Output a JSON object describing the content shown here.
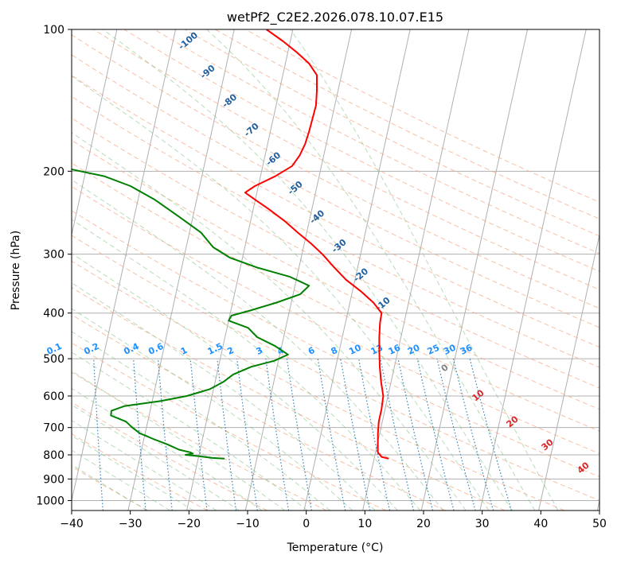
{
  "chart_data": {
    "type": "line",
    "subtype": "skew-t log-p diagram",
    "title": "wetPf2_C2E2.2026.078.10.07.E15",
    "xlabel": "Temperature (°C)",
    "ylabel": "Pressure (hPa)",
    "xlim": [
      -40,
      50
    ],
    "ylim": [
      1050,
      100
    ],
    "y_scale": "log",
    "x_ticks": [
      -40,
      -30,
      -20,
      -10,
      0,
      10,
      20,
      30,
      40,
      50
    ],
    "y_ticks": [
      1000,
      900,
      800,
      700,
      600,
      500,
      400,
      300,
      200,
      100
    ],
    "grid": true,
    "series": [
      {
        "role": "temperature",
        "color": "#ff0000",
        "points": [
          [
            815,
            12.5
          ],
          [
            808,
            11.2
          ],
          [
            790,
            10.4
          ],
          [
            760,
            10.1
          ],
          [
            720,
            9.7
          ],
          [
            680,
            9.4
          ],
          [
            640,
            9.4
          ],
          [
            600,
            9.2
          ],
          [
            560,
            8.3
          ],
          [
            520,
            7.5
          ],
          [
            480,
            6.8
          ],
          [
            450,
            6.3
          ],
          [
            420,
            5.9
          ],
          [
            400,
            5.8
          ],
          [
            380,
            4.0
          ],
          [
            360,
            1.5
          ],
          [
            340,
            -1.5
          ],
          [
            320,
            -4.0
          ],
          [
            300,
            -6.5
          ],
          [
            285,
            -8.8
          ],
          [
            270,
            -11.5
          ],
          [
            255,
            -14.2
          ],
          [
            240,
            -17.5
          ],
          [
            230,
            -20.0
          ],
          [
            222,
            -22.0
          ],
          [
            215,
            -20.6
          ],
          [
            205,
            -17.5
          ],
          [
            195,
            -15.0
          ],
          [
            185,
            -14.1
          ],
          [
            175,
            -13.6
          ],
          [
            165,
            -13.4
          ],
          [
            155,
            -13.3
          ],
          [
            145,
            -13.2
          ],
          [
            135,
            -13.6
          ],
          [
            125,
            -14.2
          ],
          [
            118,
            -16.0
          ],
          [
            112,
            -18.4
          ],
          [
            106,
            -21.2
          ],
          [
            100,
            -24.5
          ]
        ]
      },
      {
        "role": "dewpoint",
        "color": "#008000",
        "points": [
          [
            815,
            -15.5
          ],
          [
            812,
            -17.6
          ],
          [
            805,
            -20.0
          ],
          [
            800,
            -22.3
          ],
          [
            795,
            -21.1
          ],
          [
            790,
            -21.6
          ],
          [
            780,
            -23.6
          ],
          [
            760,
            -25.8
          ],
          [
            740,
            -28.4
          ],
          [
            720,
            -30.9
          ],
          [
            700,
            -32.4
          ],
          [
            680,
            -33.7
          ],
          [
            660,
            -36.5
          ],
          [
            645,
            -36.6
          ],
          [
            630,
            -34.5
          ],
          [
            615,
            -28.6
          ],
          [
            600,
            -24.3
          ],
          [
            580,
            -20.6
          ],
          [
            560,
            -18.6
          ],
          [
            540,
            -17.2
          ],
          [
            520,
            -14.4
          ],
          [
            505,
            -10.7
          ],
          [
            490,
            -8.6
          ],
          [
            470,
            -11.1
          ],
          [
            450,
            -14.5
          ],
          [
            430,
            -16.4
          ],
          [
            415,
            -20.0
          ],
          [
            405,
            -19.7
          ],
          [
            395,
            -16.7
          ],
          [
            380,
            -12.5
          ],
          [
            365,
            -8.8
          ],
          [
            350,
            -7.6
          ],
          [
            335,
            -11.2
          ],
          [
            320,
            -17.2
          ],
          [
            305,
            -22.2
          ],
          [
            290,
            -25.4
          ],
          [
            270,
            -28.0
          ],
          [
            250,
            -32.3
          ],
          [
            230,
            -37.1
          ],
          [
            215,
            -41.8
          ],
          [
            205,
            -46.6
          ],
          [
            198,
            -52.6
          ],
          [
            192,
            -60.0
          ],
          [
            187,
            -67.0
          ],
          [
            184,
            -71.3
          ],
          [
            180,
            -73.0
          ],
          [
            173,
            -72.1
          ],
          [
            165,
            -71.0
          ],
          [
            155,
            -71.0
          ],
          [
            145,
            -72.7
          ],
          [
            135,
            -74.6
          ],
          [
            125,
            -75.6
          ],
          [
            115,
            -78.7
          ],
          [
            108,
            -82.6
          ],
          [
            100,
            -88.3
          ]
        ]
      }
    ],
    "dry_adiabat_labels": [
      "-100",
      "-90",
      "-80",
      "-70",
      "-60",
      "-50",
      "-40",
      "-30",
      "-20",
      "-10"
    ],
    "mixing_ratio_labels": [
      "0.1",
      "0.2",
      "0.4",
      "0.6",
      "1",
      "1.5",
      "2",
      "3",
      "4",
      "6",
      "8",
      "10",
      "13",
      "16",
      "20",
      "25",
      "30",
      "36"
    ],
    "moist_adiabat_labels": [
      "0",
      "10",
      "20",
      "30",
      "40"
    ]
  }
}
